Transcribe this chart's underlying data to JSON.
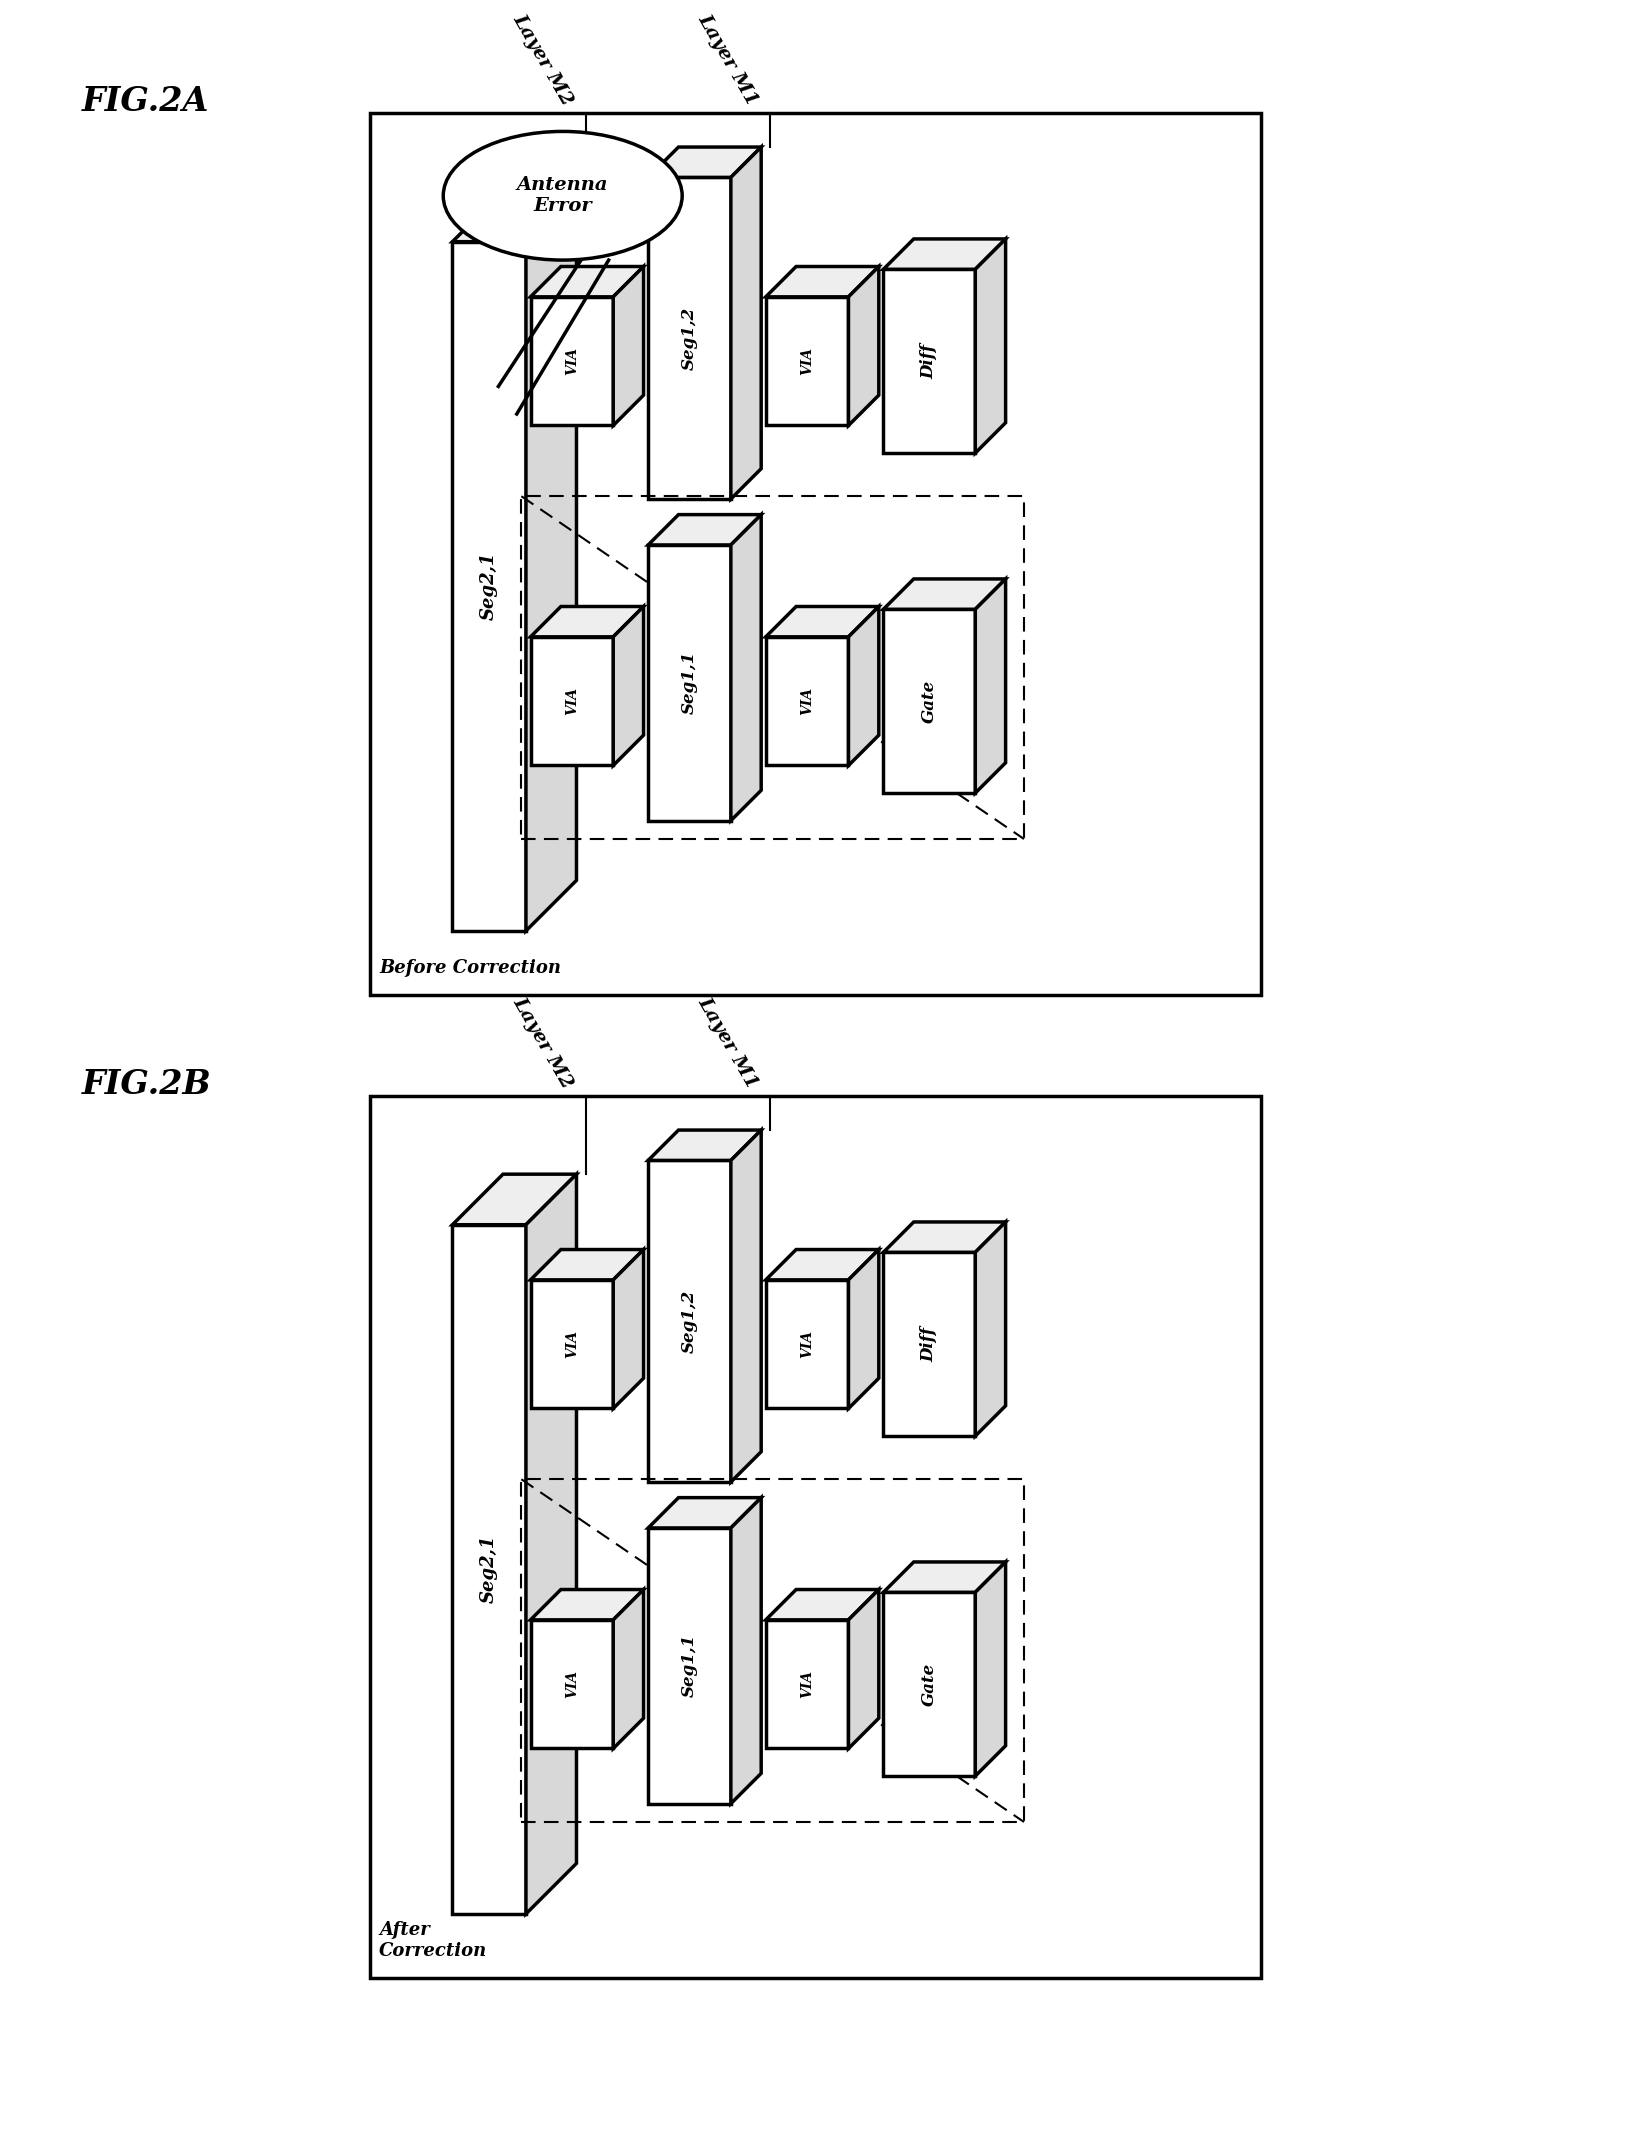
{
  "fig_width": 16.4,
  "fig_height": 21.37,
  "dpi": 100,
  "panels": [
    {
      "id": "A",
      "title": "FIG.2A",
      "corner_label": "Before Correction",
      "show_antenna": true,
      "antenna_text": "Antenna\nError"
    },
    {
      "id": "B",
      "title": "FIG.2B",
      "corner_label": "After\nCorrection",
      "show_antenna": false,
      "antenna_text": ""
    }
  ],
  "layer_m2": "Layer M2",
  "layer_m1": "Layer M1",
  "seg21": "Seg2,1",
  "seg12": "Seg1,2",
  "seg11": "Seg1,1",
  "via": "VIA",
  "diff": "Diff",
  "gate": "Gate",
  "lw": 2.5,
  "lw_thin": 1.5,
  "face_white": "#ffffff",
  "face_light": "#eeeeee",
  "face_mid": "#d8d8d8",
  "face_dark": "#c0c0c0",
  "edge": "#000000"
}
